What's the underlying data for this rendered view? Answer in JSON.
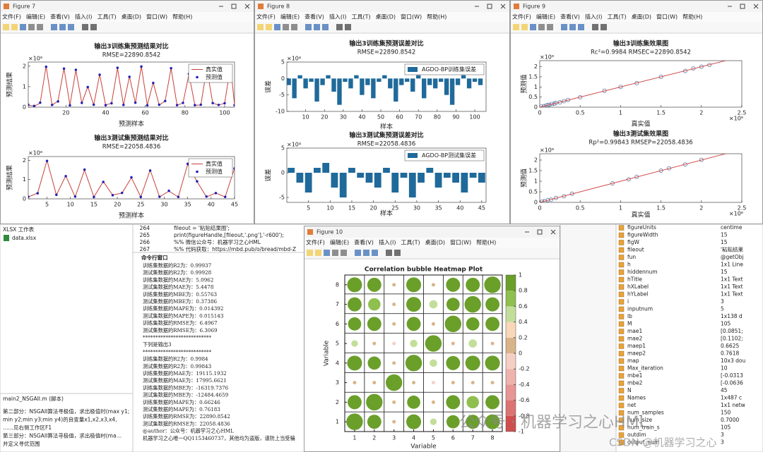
{
  "figure_menu": [
    "文件(F)",
    "编辑(E)",
    "查看(V)",
    "插入(I)",
    "工具(T)",
    "桌面(D)",
    "窗口(W)",
    "帮助(H)"
  ],
  "fig7": {
    "title": "Figure 7",
    "charts": [
      {
        "type": "line",
        "title": "输出3训练集预测结果对比",
        "subtitle": "RMSE=22890.8542",
        "xlabel": "预测样本",
        "ylabel": "预测结果",
        "y_exponent": "×10⁶",
        "legend": "northeast",
        "xlim": [
          1,
          105
        ],
        "xticks": [
          20,
          40,
          60,
          80,
          100
        ],
        "ylim": [
          0,
          2.2
        ],
        "yticks": [
          0,
          1,
          2
        ],
        "x": [
          1,
          4,
          7,
          10,
          13,
          16,
          19,
          22,
          25,
          28,
          31,
          34,
          37,
          40,
          43,
          46,
          49,
          52,
          55,
          58,
          61,
          64,
          67,
          70,
          73,
          76,
          79,
          82,
          85,
          88,
          91,
          94,
          97,
          100,
          103,
          105
        ],
        "series": [
          {
            "name": "真实值",
            "color": "#c8413a",
            "style": "line",
            "values": [
              0.1,
              0.05,
              0.2,
              2.0,
              0.1,
              0.3,
              1.9,
              0.1,
              1.8,
              0.2,
              1.0,
              0.1,
              1.6,
              0.1,
              0.2,
              1.9,
              0.1,
              1.5,
              0.2,
              2.0,
              0.1,
              1.2,
              0.1,
              0.3,
              1.9,
              0.1,
              0.2,
              1.6,
              0.1,
              0.1,
              1.9,
              0.2,
              0.1,
              0.2,
              2.0,
              0.1
            ]
          },
          {
            "name": "预测值",
            "color": "#1f1fb4",
            "style": "marker",
            "values": [
              0.12,
              0.06,
              0.22,
              1.97,
              0.11,
              0.28,
              1.88,
              0.09,
              1.82,
              0.21,
              0.98,
              0.12,
              1.58,
              0.1,
              0.19,
              1.92,
              0.11,
              1.48,
              0.22,
              1.98,
              0.09,
              1.18,
              0.12,
              0.3,
              1.9,
              0.1,
              0.21,
              1.62,
              0.1,
              0.12,
              1.88,
              0.2,
              0.11,
              0.19,
              1.99,
              0.1
            ]
          }
        ]
      },
      {
        "type": "line",
        "title": "输出3测试集预测结果对比",
        "subtitle": "RMSE=22058.4836",
        "xlabel": "预测样本",
        "ylabel": "预测结果",
        "y_exponent": "×10⁶",
        "legend": "northeast",
        "xlim": [
          1,
          45
        ],
        "xticks": [
          5,
          10,
          15,
          20,
          25,
          30,
          35,
          40,
          45
        ],
        "ylim": [
          0,
          2.2
        ],
        "yticks": [
          0,
          1,
          2
        ],
        "x": [
          1,
          3,
          5,
          7,
          9,
          11,
          13,
          15,
          17,
          19,
          21,
          23,
          25,
          27,
          29,
          31,
          33,
          35,
          37,
          39,
          41,
          43,
          45
        ],
        "series": [
          {
            "name": "真实值",
            "color": "#c8413a",
            "style": "line",
            "values": [
              0.1,
              0.3,
              2.0,
              0.2,
              1.2,
              0.1,
              1.5,
              0.1,
              0.9,
              0.2,
              0.3,
              1.1,
              0.1,
              1.5,
              0.1,
              0.4,
              0.1,
              1.8,
              0.9,
              0.1,
              0.3,
              0.1,
              1.6
            ]
          },
          {
            "name": "预测值",
            "color": "#1f1fb4",
            "style": "marker",
            "values": [
              0.11,
              0.29,
              1.97,
              0.21,
              1.18,
              0.12,
              1.52,
              0.1,
              0.88,
              0.19,
              0.31,
              1.12,
              0.1,
              1.47,
              0.11,
              0.42,
              0.1,
              1.82,
              0.91,
              0.12,
              0.3,
              0.1,
              1.58
            ]
          }
        ]
      }
    ]
  },
  "fig8": {
    "title": "Figure 8",
    "charts": [
      {
        "type": "bar",
        "title": "输出3训练集预测误差对比",
        "subtitle": "RMSE=22890.8542",
        "xlabel": "样本",
        "ylabel": "误差",
        "y_exponent": "×10⁴",
        "legend": "northeast",
        "xlim": [
          0,
          106
        ],
        "xticks": [
          10,
          20,
          30,
          40,
          50,
          60,
          70,
          80,
          90,
          100
        ],
        "ylim": [
          -10,
          5
        ],
        "yticks": [
          -10,
          -5,
          0,
          5
        ],
        "x": [
          1,
          4,
          7,
          10,
          13,
          16,
          19,
          22,
          25,
          28,
          31,
          34,
          37,
          40,
          43,
          46,
          49,
          52,
          55,
          58,
          61,
          64,
          67,
          70,
          73,
          76,
          79,
          82,
          85,
          88,
          91,
          94,
          97,
          100,
          103
        ],
        "series": [
          {
            "name": "AGDO-BP训练集误差",
            "color": "#1f6a9a",
            "values": [
              -2,
              -6,
              1,
              -3,
              -1,
              -7,
              -2,
              1,
              -4,
              -8,
              -1,
              -3,
              1,
              -5,
              -2,
              -6,
              -1,
              1,
              -3,
              -7,
              -2,
              -1,
              -4,
              1,
              -6,
              -2,
              -3,
              -1,
              -5,
              -8,
              -2,
              1,
              -3,
              -1,
              -2
            ]
          }
        ]
      },
      {
        "type": "bar",
        "title": "输出3测试集预测误差对比",
        "subtitle": "RMSE=22058.4836",
        "xlabel": "样本",
        "ylabel": "误差",
        "y_exponent": "×10⁴",
        "legend": "northeast",
        "xlim": [
          0,
          46
        ],
        "xticks": [
          5,
          10,
          15,
          20,
          25,
          30,
          35,
          40,
          45
        ],
        "ylim": [
          -6,
          5
        ],
        "yticks": [
          -5,
          0,
          5
        ],
        "x": [
          1,
          3,
          5,
          7,
          9,
          11,
          13,
          15,
          17,
          19,
          21,
          23,
          25,
          27,
          29,
          31,
          33,
          35,
          37,
          39,
          41,
          43,
          45
        ],
        "series": [
          {
            "name": "AGDO-BP测试集误差",
            "color": "#1f6a9a",
            "values": [
              1,
              -2,
              -4,
              1,
              2,
              -3,
              -5,
              1,
              -1,
              -2,
              -3,
              1,
              -4,
              -1,
              -5,
              -2,
              1,
              -3,
              -1,
              -2,
              -4,
              -1,
              -2
            ]
          }
        ]
      }
    ]
  },
  "fig9": {
    "title": "Figure 9",
    "charts": [
      {
        "type": "scatter",
        "title": "输出3训练集效果图",
        "subtitle": "Rc²=0.9984  RMSEC=22890.8542",
        "xlabel": "真实值",
        "ylabel": "预测值",
        "y_exponent": "×10⁶",
        "x_exponent": "×10⁶",
        "xlim": [
          0,
          2.5
        ],
        "xticks": [
          0,
          0.5,
          1,
          1.5,
          2,
          2.5
        ],
        "ylim": [
          0,
          2.3
        ],
        "yticks": [
          0,
          0.5,
          1,
          1.5,
          2
        ],
        "series": [
          {
            "color": "#4a6c9a",
            "style": "marker",
            "x": [
              0.02,
              0.05,
              0.08,
              0.1,
              0.12,
              0.15,
              0.18,
              0.2,
              0.25,
              0.3,
              0.35,
              0.5,
              0.8,
              1.0,
              1.2,
              1.5,
              1.8,
              1.9,
              2.0,
              2.1
            ],
            "values": [
              0.03,
              0.05,
              0.09,
              0.1,
              0.12,
              0.16,
              0.17,
              0.21,
              0.24,
              0.3,
              0.36,
              0.49,
              0.81,
              1.0,
              1.19,
              1.5,
              1.79,
              1.91,
              2.0,
              2.09
            ]
          },
          {
            "color": "#d24a4a",
            "style": "line",
            "x": [
              0,
              2.5
            ],
            "values": [
              0,
              2.5
            ]
          }
        ]
      },
      {
        "type": "scatter",
        "title": "输出3测试集效果图",
        "subtitle": "Rp²=0.99843  RMSEP=22058.4836",
        "xlabel": "真实值",
        "ylabel": "预测值",
        "y_exponent": "×10⁶",
        "x_exponent": "×10⁶",
        "xlim": [
          0,
          2.5
        ],
        "xticks": [
          0,
          0.5,
          1,
          1.5,
          2,
          2.5
        ],
        "ylim": [
          0,
          2.3
        ],
        "yticks": [
          0,
          0.5,
          1,
          1.5,
          2
        ],
        "series": [
          {
            "color": "#4a6c9a",
            "style": "marker",
            "x": [
              0.03,
              0.06,
              0.1,
              0.14,
              0.2,
              0.3,
              0.4,
              0.9,
              1.1,
              1.2,
              1.5,
              1.6,
              1.8,
              2.0
            ],
            "values": [
              0.04,
              0.06,
              0.11,
              0.13,
              0.21,
              0.29,
              0.41,
              0.9,
              1.09,
              1.21,
              1.5,
              1.61,
              1.79,
              2.01
            ]
          },
          {
            "color": "#d24a4a",
            "style": "line",
            "x": [
              0,
              2.5
            ],
            "values": [
              0,
              2.5
            ]
          }
        ]
      }
    ]
  },
  "fig10": {
    "title": "Figure 10",
    "chart": {
      "type": "bubble_heatmap",
      "title": "Correlation bubble Heatmap Plot",
      "xlabel": "Variable",
      "ylabel": "Variable",
      "xlim": [
        0.5,
        8.5
      ],
      "ylim": [
        0.5,
        8.5
      ],
      "xticks": [
        1,
        2,
        3,
        4,
        5,
        6,
        7,
        8
      ],
      "yticks": [
        1,
        2,
        3,
        4,
        5,
        6,
        7,
        8
      ],
      "clim": [
        -1,
        1
      ],
      "cticks": [
        1,
        0.8,
        0.6,
        0.4,
        0.2,
        0,
        -0.2,
        -0.4,
        -0.6,
        -0.8,
        -1
      ],
      "colormap": [
        "#cf4f4f",
        "#dc7373",
        "#e79595",
        "#efb3ad",
        "#f5cfc3",
        "#d9b48a",
        "#f8d8b8",
        "#c3de9a",
        "#8fbf4f",
        "#6a9f2a"
      ],
      "matrix": [
        [
          1.0,
          0.85,
          0.05,
          0.9,
          0.4,
          0.8,
          0.85,
          0.9
        ],
        [
          0.85,
          1.0,
          0.1,
          0.8,
          0.05,
          0.85,
          0.75,
          0.85
        ],
        [
          0.05,
          0.1,
          1.0,
          0.1,
          -0.05,
          0.15,
          0.1,
          0.1
        ],
        [
          0.9,
          0.8,
          0.1,
          1.0,
          0.45,
          0.85,
          0.9,
          0.9
        ],
        [
          0.4,
          0.05,
          -0.05,
          0.45,
          1.0,
          0.05,
          0.5,
          0.05
        ],
        [
          0.8,
          0.85,
          0.15,
          0.85,
          0.05,
          1.0,
          0.8,
          0.85
        ],
        [
          0.85,
          0.75,
          0.1,
          0.9,
          0.5,
          0.8,
          1.0,
          0.85
        ],
        [
          0.9,
          0.85,
          0.1,
          0.9,
          0.05,
          0.85,
          0.85,
          1.0
        ]
      ]
    }
  },
  "files": {
    "type_label": "XLSX 工作表",
    "file": "data.xlsx"
  },
  "editor": {
    "lines": [
      [
        "264",
        "fileout = '粘贴结果图';"
      ],
      [
        "265",
        "print(figureHandle,[fileout,'.png'],'-r600');"
      ],
      [
        "266",
        "%%  微信公众号：机器学习之心HML"
      ],
      [
        "267",
        "%%  代码获取：https://mbd.pub/o/bread/mbd-Z"
      ]
    ]
  },
  "command_window": {
    "title": "命令行窗口",
    "lines": [
      "训练集数据的R2为：0.99937",
      "测试集数据的R2为：0.99928",
      "训练集数据的MAE为：5.0962",
      "测试集数据的MAE为：5.4478",
      "训练集数据的MBE为：0.55763",
      "测试集数据的MBE为：0.37386",
      "训练集数据的MAPE为：0.014392",
      "测试集数据的MAPE为：0.015143",
      "训练集数据的RMSE为：6.4967",
      "测试集数据的RMSE为：6.3069",
      "***************************",
      "下列是输出3",
      "***************************",
      "训练集数据的R2为：0.9984",
      "测试集数据的R2为：0.99843",
      "训练集数据的MAE为：19115.1932",
      "测试集数据的MAE为：17995.6621",
      "训练集数据的MBE为：-16319.7376",
      "测试集数据的MBE为：-12484.4659",
      "训练集数据的MAPE为：0.66246",
      "测试集数据的MAPE为：0.76183",
      "训练集数据的RMSE为：22890.8542",
      "测试集数据的RMSE为：22058.4836",
      "@author：公众号：机器学习之心HML",
      "机器学习之心唯一QQ1153460737，其他均为盗版，谨防上当受骗"
    ]
  },
  "script_details": {
    "title": "main2_NSGAII.m (脚本)",
    "lines": [
      "第二部分：NSGAII算法寻极值，求出极值时(max y1;",
      "min y2;min y3;min y4)的自变量x1,x2,x3,x4,",
      "……见右侧工作区F1",
      "第三部分：NSGAII算法寻极值，求出极值时(ma…",
      "并定义寻优范围"
    ]
  },
  "workspace": [
    [
      "figureUnits",
      "centime"
    ],
    [
      "figureWidth",
      "15"
    ],
    [
      "figW",
      "15"
    ],
    [
      "fileout",
      "'粘贴结果"
    ],
    [
      "fun",
      "@getObj"
    ],
    [
      "h",
      "1x1 Line"
    ],
    [
      "hiddennum",
      "15"
    ],
    [
      "hTitle",
      "1x1 Text"
    ],
    [
      "hXLabel",
      "1x1 Text"
    ],
    [
      "hYLabel",
      "1x1 Text"
    ],
    [
      "i",
      "3"
    ],
    [
      "inputnum",
      "5"
    ],
    [
      "lb",
      "1x138 d"
    ],
    [
      "M",
      "105"
    ],
    [
      "mae1",
      "[0.0851;"
    ],
    [
      "mae2",
      "[0.1102;"
    ],
    [
      "maep1",
      "0.6625"
    ],
    [
      "maep2",
      "0.7618"
    ],
    [
      "map",
      "10x3 dou"
    ],
    [
      "Max_iteration",
      "10"
    ],
    [
      "mbe1",
      "[-0.0313"
    ],
    [
      "mbe2",
      "[-0.0636"
    ],
    [
      "N",
      "45"
    ],
    [
      "Names",
      "1x487 c"
    ],
    [
      "net",
      "1x1 netw"
    ],
    [
      "num_samples",
      "150"
    ],
    [
      "num_size",
      "0.7000"
    ],
    [
      "num_train_s",
      "105"
    ],
    [
      "outdim",
      "3"
    ],
    [
      "output_num",
      "3"
    ]
  ],
  "watermark": {
    "main": "公众号 · 机器学习之心HML",
    "corner": "CSDN @机器学习之心"
  }
}
